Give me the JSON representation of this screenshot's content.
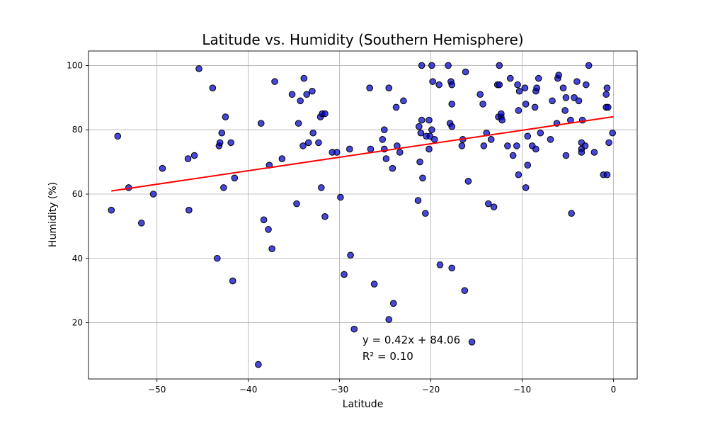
{
  "chart_data": {
    "type": "scatter",
    "title": "Latitude vs. Humidity (Southern Hemisphere)",
    "xlabel": "Latitude",
    "ylabel": "Humidity (%)",
    "xlim": [
      -57.5,
      2.6
    ],
    "ylim": [
      2.5,
      104.5
    ],
    "xticks": [
      -50,
      -40,
      -30,
      -20,
      -10,
      0
    ],
    "xtick_labels": [
      "−50",
      "−40",
      "−30",
      "−20",
      "−10",
      "0"
    ],
    "yticks": [
      20,
      40,
      60,
      80,
      100
    ],
    "ytick_labels": [
      "20",
      "40",
      "60",
      "80",
      "100"
    ],
    "grid": true,
    "marker_color": "#0000cc",
    "marker_edge_color": "#000000",
    "line_color": "#ff0000",
    "regression": {
      "slope": 0.42,
      "intercept": 84.06,
      "x_range": [
        -55,
        0
      ]
    },
    "annotation": {
      "equation": "y = 0.42x + 84.06",
      "r_squared": "R² = 0.10",
      "x": -27.5,
      "y": 13.5
    },
    "points": [
      [
        -55,
        55
      ],
      [
        -54.3,
        78
      ],
      [
        -53.1,
        62
      ],
      [
        -51.7,
        51
      ],
      [
        -50.4,
        60
      ],
      [
        -49.4,
        68
      ],
      [
        -46.6,
        71
      ],
      [
        -46.5,
        55
      ],
      [
        -45.9,
        72
      ],
      [
        -45.4,
        99
      ],
      [
        -43.9,
        93
      ],
      [
        -43.4,
        40
      ],
      [
        -43.2,
        75
      ],
      [
        -43.1,
        76
      ],
      [
        -42.9,
        79
      ],
      [
        -42.7,
        62
      ],
      [
        -42.5,
        84
      ],
      [
        -41.9,
        76
      ],
      [
        -41.7,
        33
      ],
      [
        -41.5,
        65
      ],
      [
        -38.9,
        7
      ],
      [
        -38.6,
        82
      ],
      [
        -38.3,
        52
      ],
      [
        -37.8,
        49
      ],
      [
        -37.7,
        69
      ],
      [
        -37.4,
        43
      ],
      [
        -37.1,
        95
      ],
      [
        -36.3,
        71
      ],
      [
        -35.2,
        91
      ],
      [
        -34.7,
        57
      ],
      [
        -34.5,
        82
      ],
      [
        -34.3,
        89
      ],
      [
        -34,
        75
      ],
      [
        -33.9,
        96
      ],
      [
        -33.6,
        91
      ],
      [
        -33.4,
        76
      ],
      [
        -33,
        92
      ],
      [
        -32.9,
        79
      ],
      [
        -32.3,
        76
      ],
      [
        -32.1,
        84
      ],
      [
        -32,
        62
      ],
      [
        -31.9,
        85
      ],
      [
        -31.6,
        85
      ],
      [
        -31.6,
        53
      ],
      [
        -30.8,
        73
      ],
      [
        -30.3,
        73
      ],
      [
        -29.9,
        59
      ],
      [
        -29.5,
        35
      ],
      [
        -28.9,
        74
      ],
      [
        -28.8,
        41
      ],
      [
        -28.4,
        18
      ],
      [
        -26.7,
        93
      ],
      [
        -26.6,
        74
      ],
      [
        -26.2,
        32
      ],
      [
        -25.3,
        77
      ],
      [
        -25.1,
        74
      ],
      [
        -25.1,
        80
      ],
      [
        -24.9,
        71
      ],
      [
        -24.6,
        93
      ],
      [
        -24.6,
        21
      ],
      [
        -24.2,
        68
      ],
      [
        -24.1,
        26
      ],
      [
        -23.8,
        87
      ],
      [
        -23.7,
        75
      ],
      [
        -23.4,
        73
      ],
      [
        -23,
        89
      ],
      [
        -21.4,
        58
      ],
      [
        -21.3,
        81
      ],
      [
        -21.1,
        79
      ],
      [
        -21.2,
        70
      ],
      [
        -21,
        83
      ],
      [
        -21,
        100
      ],
      [
        -20.9,
        65
      ],
      [
        -20.6,
        54
      ],
      [
        -20.5,
        78
      ],
      [
        -20.2,
        83
      ],
      [
        -20.2,
        74
      ],
      [
        -20.1,
        78
      ],
      [
        -19.9,
        100
      ],
      [
        -19.9,
        80
      ],
      [
        -19.8,
        95
      ],
      [
        -19.6,
        77
      ],
      [
        -19.1,
        94
      ],
      [
        -19,
        38
      ],
      [
        -18.1,
        100
      ],
      [
        -17.9,
        82
      ],
      [
        -17.8,
        95
      ],
      [
        -17.7,
        94
      ],
      [
        -17.7,
        88
      ],
      [
        -17.7,
        37
      ],
      [
        -17.7,
        81
      ],
      [
        -16.6,
        75
      ],
      [
        -16.5,
        77
      ],
      [
        -16.3,
        30
      ],
      [
        -16.2,
        98
      ],
      [
        -15.9,
        64
      ],
      [
        -15.5,
        14
      ],
      [
        -14.6,
        91
      ],
      [
        -14.3,
        88
      ],
      [
        -14.2,
        75
      ],
      [
        -13.9,
        79
      ],
      [
        -13.7,
        57
      ],
      [
        -13.4,
        77
      ],
      [
        -13.1,
        56
      ],
      [
        -12.7,
        94
      ],
      [
        -12.6,
        84
      ],
      [
        -12.5,
        94
      ],
      [
        -12.5,
        100
      ],
      [
        -12.3,
        84
      ],
      [
        -12.3,
        85
      ],
      [
        -12.2,
        83
      ],
      [
        -11.6,
        75
      ],
      [
        -11.3,
        96
      ],
      [
        -11,
        72
      ],
      [
        -10.6,
        75
      ],
      [
        -10.5,
        94
      ],
      [
        -10.4,
        86
      ],
      [
        -10.4,
        66
      ],
      [
        -10.3,
        92
      ],
      [
        -9.7,
        93
      ],
      [
        -9.6,
        88
      ],
      [
        -9.6,
        62
      ],
      [
        -9.4,
        78
      ],
      [
        -9.4,
        69
      ],
      [
        -8.9,
        75
      ],
      [
        -8.6,
        87
      ],
      [
        -8.5,
        74
      ],
      [
        -8.5,
        92
      ],
      [
        -8.4,
        93
      ],
      [
        -8.2,
        96
      ],
      [
        -8,
        79
      ],
      [
        -6.9,
        77
      ],
      [
        -6.7,
        89
      ],
      [
        -6.2,
        82
      ],
      [
        -6.1,
        96
      ],
      [
        -6,
        97
      ],
      [
        -5.5,
        93
      ],
      [
        -5.3,
        86
      ],
      [
        -5.2,
        90
      ],
      [
        -5.2,
        72
      ],
      [
        -4.7,
        83
      ],
      [
        -4.6,
        54
      ],
      [
        -4.3,
        90
      ],
      [
        -4,
        95
      ],
      [
        -3.8,
        89
      ],
      [
        -3.5,
        74
      ],
      [
        -3.5,
        76
      ],
      [
        -3.5,
        73
      ],
      [
        -3.4,
        83
      ],
      [
        -3.1,
        75
      ],
      [
        -3,
        94
      ],
      [
        -2.7,
        100
      ],
      [
        -2.1,
        73
      ],
      [
        -1.1,
        66
      ],
      [
        -0.8,
        87
      ],
      [
        -0.8,
        91
      ],
      [
        -0.7,
        93
      ],
      [
        -0.6,
        87
      ],
      [
        -0.7,
        66
      ],
      [
        -0.5,
        76
      ],
      [
        -0.1,
        79
      ]
    ]
  }
}
